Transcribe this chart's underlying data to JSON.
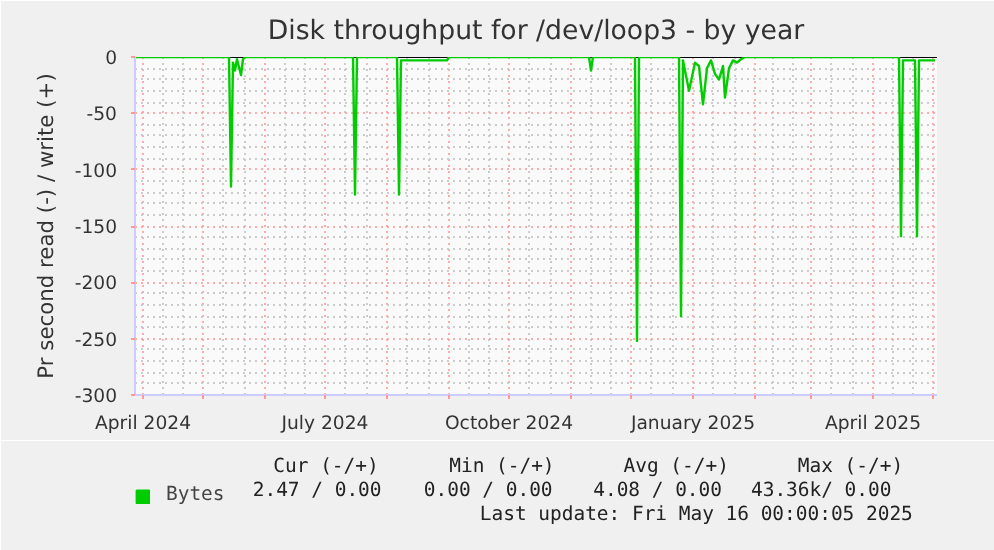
{
  "chart_data": {
    "type": "line",
    "title": "Disk throughput for /dev/loop3 - by year",
    "ylabel": "Pr second read (-) / write (+)",
    "x": [
      "2024-03-28",
      "2024-05-14",
      "2024-05-15",
      "2024-05-16",
      "2024-05-17",
      "2024-05-18",
      "2024-05-20",
      "2024-05-21",
      "2024-05-22",
      "2024-07-15",
      "2024-07-16",
      "2024-07-17",
      "2024-08-06",
      "2024-08-07",
      "2024-08-08",
      "2024-08-31",
      "2024-09-01",
      "2024-11-10",
      "2024-11-11",
      "2024-11-12",
      "2024-12-03",
      "2024-12-04",
      "2024-12-05",
      "2024-12-25",
      "2024-12-26",
      "2024-12-27",
      "2024-12-30",
      "2025-01-02",
      "2025-01-04",
      "2025-01-06",
      "2025-01-08",
      "2025-01-10",
      "2025-01-12",
      "2025-01-14",
      "2025-01-16",
      "2025-01-17",
      "2025-01-19",
      "2025-01-21",
      "2025-01-23",
      "2025-01-25",
      "2025-01-27",
      "2025-04-14",
      "2025-04-15",
      "2025-04-16",
      "2025-04-22",
      "2025-04-23",
      "2025-04-24",
      "2025-05-02"
    ],
    "series": [
      {
        "name": "Bytes",
        "color": "#00cc00",
        "values": [
          0,
          0,
          -115,
          -5,
          -12,
          -2,
          -16,
          -2,
          0,
          0,
          -122,
          0,
          0,
          -122,
          -3,
          -3,
          0,
          0,
          -12,
          0,
          0,
          -252,
          0,
          0,
          -230,
          -3,
          -30,
          -5,
          -8,
          -42,
          -10,
          -3,
          -15,
          -20,
          -8,
          -36,
          -10,
          -3,
          -5,
          -2,
          0,
          0,
          -159,
          -3,
          -3,
          -159,
          -3,
          -3
        ]
      }
    ],
    "xlim": [
      "2024-03-28",
      "2025-05-03"
    ],
    "xticks": [
      {
        "value": "2024-04-01",
        "label": "April 2024"
      },
      {
        "value": "2024-05-01",
        "label": null
      },
      {
        "value": "2024-06-01",
        "label": null
      },
      {
        "value": "2024-07-01",
        "label": "July 2024"
      },
      {
        "value": "2024-08-01",
        "label": null
      },
      {
        "value": "2024-09-01",
        "label": null
      },
      {
        "value": "2024-10-01",
        "label": "October 2024"
      },
      {
        "value": "2024-11-01",
        "label": null
      },
      {
        "value": "2024-12-01",
        "label": null
      },
      {
        "value": "2025-01-01",
        "label": "January 2025"
      },
      {
        "value": "2025-02-01",
        "label": null
      },
      {
        "value": "2025-03-01",
        "label": null
      },
      {
        "value": "2025-04-01",
        "label": "April 2025"
      },
      {
        "value": "2025-05-01",
        "label": null
      }
    ],
    "ylim": [
      -300,
      0
    ],
    "yticks": [
      -300,
      -250,
      -200,
      -150,
      -100,
      -50,
      0
    ],
    "grid": true,
    "legend": "bottom",
    "marker": "none",
    "line_style": "solid",
    "annotations": [
      "Cur (-/+)",
      "Min (-/+)",
      "Avg (-/+)",
      "Max (-/+)",
      "2.47 /  0.00",
      "0.00 /  0.00",
      "4.08 /  0.00",
      "43.36k/  0.00",
      "Last update: Fri May 16 00:00:05 2025"
    ]
  }
}
